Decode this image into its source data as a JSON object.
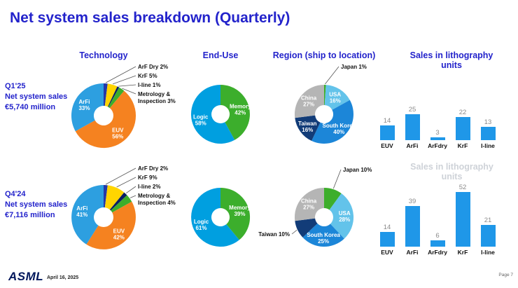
{
  "slide": {
    "title": "Net system sales breakdown (Quarterly)",
    "ghost_text": "Sales in lithography units",
    "footer": {
      "logo": "ASML",
      "date": "April 16, 2025",
      "page": "Page 7"
    }
  },
  "columns": {
    "technology": "Technology",
    "end_use": "End-Use",
    "region": "Region (ship to location)",
    "litho_units": "Sales in lithography units"
  },
  "rows": [
    {
      "period": "Q1'25",
      "caption": "Net system sales",
      "amount": "€5,740 million"
    },
    {
      "period": "Q4'24",
      "caption": "Net system sales",
      "amount": "€7,116 million"
    }
  ],
  "colors": {
    "accent_blue": "#2323CB",
    "bar_blue": "#1F97E8",
    "bar_value_label": "#8A8A8A",
    "euv_orange": "#F58220",
    "arfi_blue": "#2D9FE0",
    "memory_green": "#3CAE2C",
    "logic_blue": "#009FE0",
    "china_gray": "#B5B5B5"
  },
  "chart_data": [
    {
      "id": "technology-q1-25",
      "type": "pie",
      "period": "Q1'25",
      "title": "Technology",
      "unit": "%",
      "labels": [
        "ArF Dry",
        "KrF",
        "I-line",
        "Metrology & Inspection",
        "EUV",
        "ArFi"
      ],
      "values": [
        2,
        5,
        1,
        3,
        56,
        33
      ],
      "colors": [
        "#2438A8",
        "#FFD500",
        "#0A1F63",
        "#3DAE2B",
        "#F58220",
        "#2D9FE0"
      ]
    },
    {
      "id": "end-use-q1-25",
      "type": "pie",
      "period": "Q1'25",
      "title": "End-Use",
      "unit": "%",
      "labels": [
        "Memory",
        "Logic"
      ],
      "values": [
        42,
        58
      ],
      "colors": [
        "#3CAE2C",
        "#009FE0"
      ]
    },
    {
      "id": "region-q1-25",
      "type": "pie",
      "period": "Q1'25",
      "title": "Region (ship to location)",
      "unit": "%",
      "labels": [
        "Japan",
        "USA",
        "South Korea",
        "Taiwan",
        "China"
      ],
      "values": [
        1,
        16,
        40,
        16,
        27
      ],
      "colors": [
        "#3DAE2B",
        "#63C3EA",
        "#1C86D8",
        "#123C78",
        "#B5B5B5"
      ]
    },
    {
      "id": "litho-units-q1-25",
      "type": "bar",
      "period": "Q1'25",
      "title": "Sales in lithography units",
      "categories": [
        "EUV",
        "ArFi",
        "ArFdry",
        "KrF",
        "I-line"
      ],
      "values": [
        14,
        25,
        3,
        22,
        13
      ],
      "color": "#1F97E8"
    },
    {
      "id": "technology-q4-24",
      "type": "pie",
      "period": "Q4'24",
      "title": "Technology",
      "unit": "%",
      "labels": [
        "ArF Dry",
        "KrF",
        "I-line",
        "Metrology & Inspection",
        "EUV",
        "ArFi"
      ],
      "values": [
        2,
        9,
        2,
        4,
        42,
        41
      ],
      "colors": [
        "#2438A8",
        "#FFD500",
        "#0A1F63",
        "#3DAE2B",
        "#F58220",
        "#2D9FE0"
      ]
    },
    {
      "id": "end-use-q4-24",
      "type": "pie",
      "period": "Q4'24",
      "title": "End-Use",
      "unit": "%",
      "labels": [
        "Memory",
        "Logic"
      ],
      "values": [
        39,
        61
      ],
      "colors": [
        "#3CAE2C",
        "#009FE0"
      ]
    },
    {
      "id": "region-q4-24",
      "type": "pie",
      "period": "Q4'24",
      "title": "Region (ship to location)",
      "unit": "%",
      "labels": [
        "Japan",
        "USA",
        "South Korea",
        "Taiwan",
        "China"
      ],
      "values": [
        10,
        28,
        25,
        10,
        27
      ],
      "colors": [
        "#3DAE2B",
        "#63C3EA",
        "#1C86D8",
        "#123C78",
        "#B5B5B5"
      ]
    },
    {
      "id": "litho-units-q4-24",
      "type": "bar",
      "period": "Q4'24",
      "title": "Sales in lithography units",
      "categories": [
        "EUV",
        "ArFi",
        "ArFdry",
        "KrF",
        "I-line"
      ],
      "values": [
        14,
        39,
        6,
        52,
        21
      ],
      "color": "#1F97E8"
    }
  ]
}
